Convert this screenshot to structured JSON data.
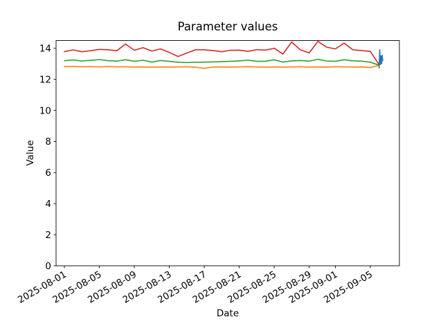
{
  "figure": {
    "background_color": "#ffffff",
    "axes_color": "#000000"
  },
  "chart_data": {
    "type": "line",
    "title": "Parameter values",
    "xlabel": "Date",
    "ylabel": "Value",
    "grid": false,
    "legend": "none",
    "x_start_date": "2025-08-01",
    "x_tick_labels": [
      "2025-08-01",
      "2025-08-05",
      "2025-08-09",
      "2025-08-13",
      "2025-08-17",
      "2025-08-21",
      "2025-08-25",
      "2025-08-29",
      "2025-09-01",
      "2025-09-05"
    ],
    "x_tick_days": [
      0,
      4,
      8,
      12,
      16,
      20,
      24,
      28,
      31,
      35
    ],
    "x_tick_rotation_deg": 30,
    "y_ticks": [
      0,
      2,
      4,
      6,
      8,
      10,
      12,
      14
    ],
    "xlim_days": [
      -0.95,
      38.32
    ],
    "ylim": [
      0,
      14.5
    ],
    "series": [
      {
        "name": "blue",
        "color": "#1f77b4",
        "x_days": [
          36.0,
          36.07,
          36.14,
          36.21,
          36.28,
          36.35,
          36.42
        ],
        "values": [
          12.72,
          13.9,
          12.95,
          13.5,
          13.0,
          13.55,
          13.2
        ]
      },
      {
        "name": "orange",
        "color": "#ff7f0e",
        "values": [
          12.82,
          12.83,
          12.81,
          12.82,
          12.8,
          12.82,
          12.8,
          12.81,
          12.79,
          12.8,
          12.78,
          12.8,
          12.79,
          12.8,
          12.81,
          12.78,
          12.71,
          12.79,
          12.8,
          12.79,
          12.8,
          12.81,
          12.8,
          12.78,
          12.8,
          12.79,
          12.8,
          12.81,
          12.78,
          12.8,
          12.79,
          12.81,
          12.8,
          12.79,
          12.8,
          12.76,
          12.9
        ]
      },
      {
        "name": "green",
        "color": "#2ca02c",
        "values": [
          13.2,
          13.25,
          13.18,
          13.22,
          13.27,
          13.2,
          13.17,
          13.26,
          13.16,
          13.23,
          13.11,
          13.21,
          13.16,
          13.1,
          13.08,
          13.1,
          13.11,
          13.12,
          13.14,
          13.16,
          13.19,
          13.23,
          13.16,
          13.16,
          13.26,
          13.11,
          13.19,
          13.21,
          13.17,
          13.29,
          13.18,
          13.16,
          13.26,
          13.19,
          13.17,
          13.1,
          12.91
        ]
      },
      {
        "name": "red",
        "color": "#d62728",
        "values": [
          13.78,
          13.9,
          13.78,
          13.84,
          13.93,
          13.9,
          13.84,
          14.27,
          13.87,
          14.04,
          13.82,
          13.96,
          13.73,
          13.47,
          13.69,
          13.9,
          13.9,
          13.85,
          13.78,
          13.87,
          13.88,
          13.8,
          13.91,
          13.88,
          14.0,
          13.63,
          14.4,
          13.9,
          13.7,
          14.44,
          14.07,
          13.96,
          14.33,
          13.9,
          13.85,
          13.8,
          12.93
        ]
      }
    ]
  }
}
